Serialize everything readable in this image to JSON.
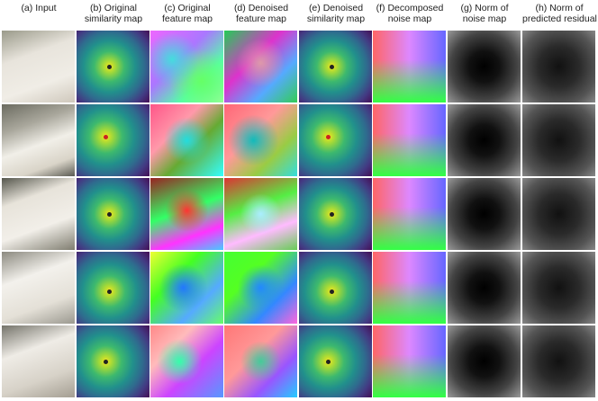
{
  "figure": {
    "columns": [
      {
        "lines": [
          "(a) Input"
        ]
      },
      {
        "lines": [
          "(b) Original",
          "similarity map"
        ]
      },
      {
        "lines": [
          "(c) Original",
          "feature map"
        ]
      },
      {
        "lines": [
          "(d) Denoised",
          "feature map"
        ]
      },
      {
        "lines": [
          "(e) Denoised",
          "similarity map"
        ]
      },
      {
        "lines": [
          "(f) Decomposed",
          "noise map"
        ]
      },
      {
        "lines": [
          "(g) Norm of",
          "noise map"
        ]
      },
      {
        "lines": [
          "(h) Norm of",
          "predicted residual"
        ]
      }
    ]
  }
}
